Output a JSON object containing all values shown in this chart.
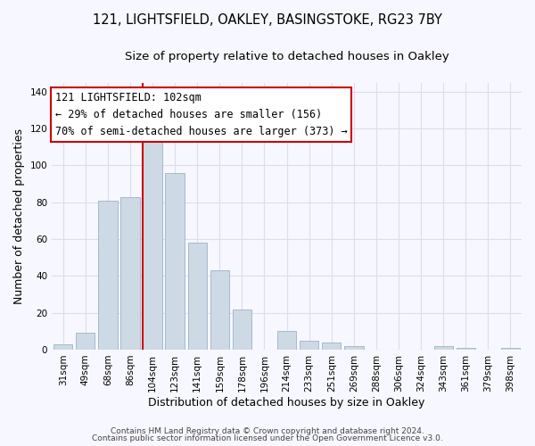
{
  "title_line1": "121, LIGHTSFIELD, OAKLEY, BASINGSTOKE, RG23 7BY",
  "title_line2": "Size of property relative to detached houses in Oakley",
  "xlabel": "Distribution of detached houses by size in Oakley",
  "ylabel": "Number of detached properties",
  "categories": [
    "31sqm",
    "49sqm",
    "68sqm",
    "86sqm",
    "104sqm",
    "123sqm",
    "141sqm",
    "159sqm",
    "178sqm",
    "196sqm",
    "214sqm",
    "233sqm",
    "251sqm",
    "269sqm",
    "288sqm",
    "306sqm",
    "324sqm",
    "343sqm",
    "361sqm",
    "379sqm",
    "398sqm"
  ],
  "values": [
    3,
    9,
    81,
    83,
    114,
    96,
    58,
    43,
    22,
    0,
    10,
    5,
    4,
    2,
    0,
    0,
    0,
    2,
    1,
    0,
    1
  ],
  "bar_color": "#cdd9e5",
  "bar_edge_color": "#9ab3c8",
  "vline_color": "#cc0000",
  "annotation_title": "121 LIGHTSFIELD: 102sqm",
  "annotation_line1": "← 29% of detached houses are smaller (156)",
  "annotation_line2": "70% of semi-detached houses are larger (373) →",
  "annotation_box_color": "#ffffff",
  "annotation_box_edge": "#cc0000",
  "ylim": [
    0,
    145
  ],
  "yticks": [
    0,
    20,
    40,
    60,
    80,
    100,
    120,
    140
  ],
  "footer1": "Contains HM Land Registry data © Crown copyright and database right 2024.",
  "footer2": "Contains public sector information licensed under the Open Government Licence v3.0.",
  "grid_color": "#ddddee",
  "background_color": "#f7f7ff",
  "title_fontsize": 10.5,
  "subtitle_fontsize": 9.5,
  "axis_label_fontsize": 9,
  "tick_fontsize": 7.5,
  "annotation_fontsize": 8.5,
  "footer_fontsize": 6.5
}
